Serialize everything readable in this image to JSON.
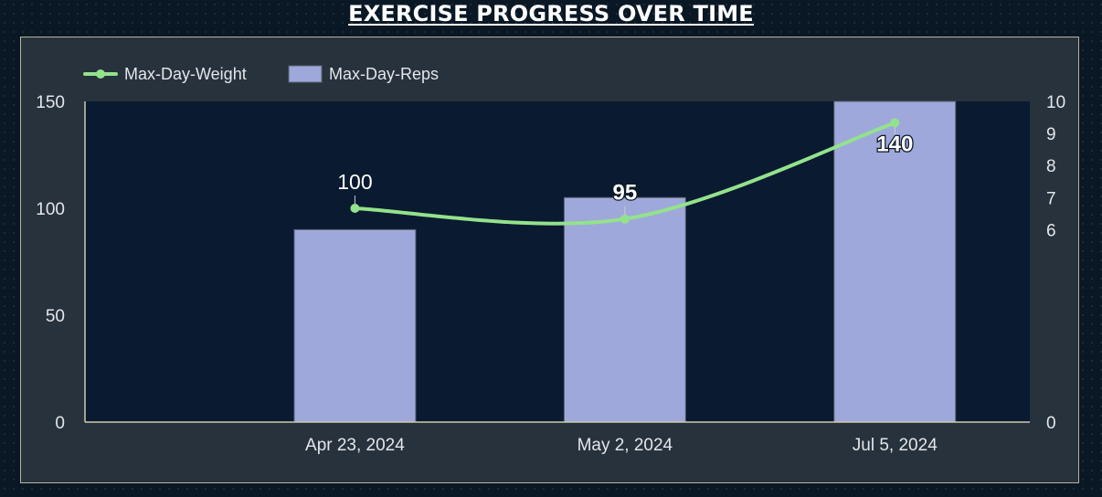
{
  "title": "EXERCISE PROGRESS OVER TIME",
  "colors": {
    "background": "#0a1724",
    "panel": "#27323c",
    "plot_area": "#0a1a30",
    "panel_border": "#b8b49a",
    "bar_fill": "#9fa8da",
    "line": "#93e28c",
    "axis_line": "#cfcbb0",
    "text": "#e4e6ea"
  },
  "chart_data": {
    "type": "bar",
    "categories": [
      "Apr 23, 2024",
      "May 2, 2024",
      "Jul 5, 2024"
    ],
    "series": [
      {
        "name": "Max-Day-Weight",
        "kind": "line",
        "axis": "left",
        "values": [
          100,
          95,
          140
        ],
        "data_labels": [
          "100",
          "95",
          "140"
        ]
      },
      {
        "name": "Max-Day-Reps",
        "kind": "bar",
        "axis": "right",
        "values": [
          6,
          7,
          10
        ]
      }
    ],
    "y_left": {
      "ylim": [
        0,
        150
      ],
      "ticks": [
        0,
        50,
        100,
        150
      ]
    },
    "y_right": {
      "ylim": [
        0,
        10
      ],
      "ticks": [
        0,
        6,
        7,
        8,
        9,
        10
      ]
    },
    "legend_position": "top-left",
    "grid": false,
    "xlabel": "",
    "ylabel": ""
  }
}
